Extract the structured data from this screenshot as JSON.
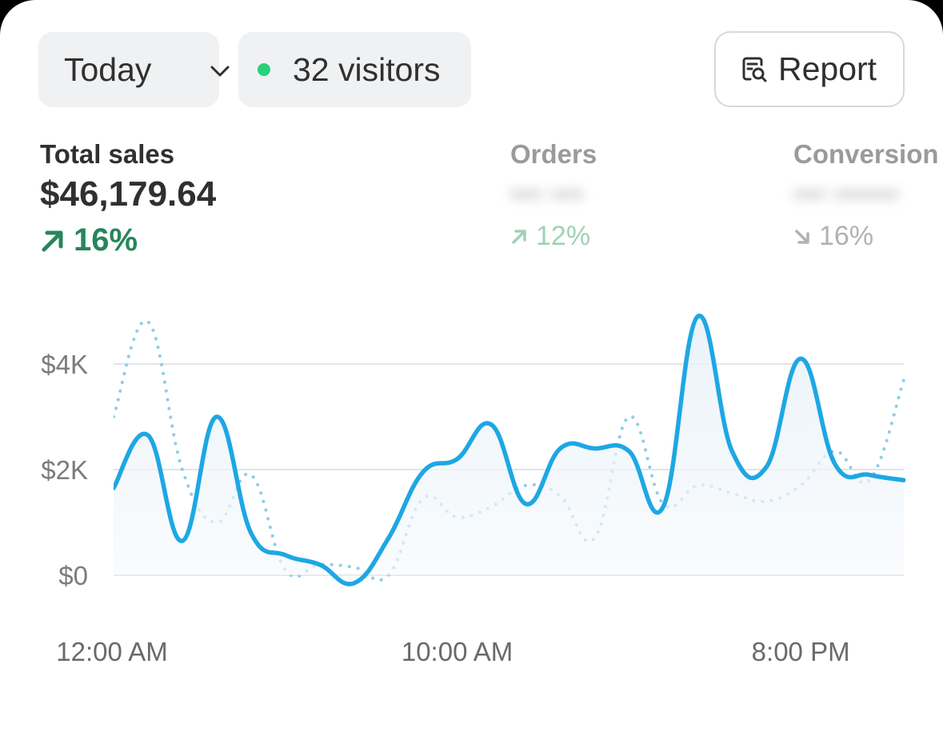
{
  "filters": {
    "date_range": "Today",
    "visitors_label": "32 visitors",
    "live_dot_color": "#29d17a"
  },
  "report_button": {
    "label": "Report",
    "icon": "report-search-icon"
  },
  "metrics": [
    {
      "label": "Total sales",
      "value": "$46,179.64",
      "change": "16%",
      "direction": "up",
      "selected": true
    },
    {
      "label": "Orders",
      "value": "",
      "change": "12%",
      "direction": "up",
      "selected": false
    },
    {
      "label": "Conversion",
      "value": "",
      "change": "16%",
      "direction": "down",
      "selected": false
    }
  ],
  "chart_data": {
    "type": "line",
    "x": [
      "12:00 AM",
      "1:00 AM",
      "2:00 AM",
      "3:00 AM",
      "4:00 AM",
      "5:00 AM",
      "6:00 AM",
      "7:00 AM",
      "8:00 AM",
      "9:00 AM",
      "10:00 AM",
      "11:00 AM",
      "12:00 PM",
      "1:00 PM",
      "2:00 PM",
      "3:00 PM",
      "4:00 PM",
      "5:00 PM",
      "6:00 PM",
      "7:00 PM",
      "8:00 PM",
      "9:00 PM",
      "10:00 PM",
      "11:00 PM"
    ],
    "x_tick_labels": [
      "12:00 AM",
      "10:00 AM",
      "8:00 PM"
    ],
    "y_tick_labels": [
      "$4K",
      "$2K",
      "$0"
    ],
    "ylim": [
      0,
      4000
    ],
    "series": [
      {
        "style": "solid",
        "color": "#1ea7e4",
        "values": [
          1650,
          2650,
          650,
          3000,
          800,
          380,
          200,
          -150,
          700,
          1950,
          2200,
          2850,
          1350,
          2400,
          2400,
          2350,
          1300,
          4900,
          2350,
          2050,
          4100,
          2100,
          1900,
          1800
        ]
      },
      {
        "style": "dotted",
        "color": "#8ccde9",
        "values": [
          3000,
          4800,
          2000,
          1000,
          1900,
          100,
          200,
          150,
          0,
          1450,
          1100,
          1300,
          1700,
          1500,
          700,
          3000,
          1350,
          1700,
          1550,
          1400,
          1700,
          2350,
          1800,
          3700
        ]
      }
    ],
    "grid": true,
    "legend": "none"
  }
}
